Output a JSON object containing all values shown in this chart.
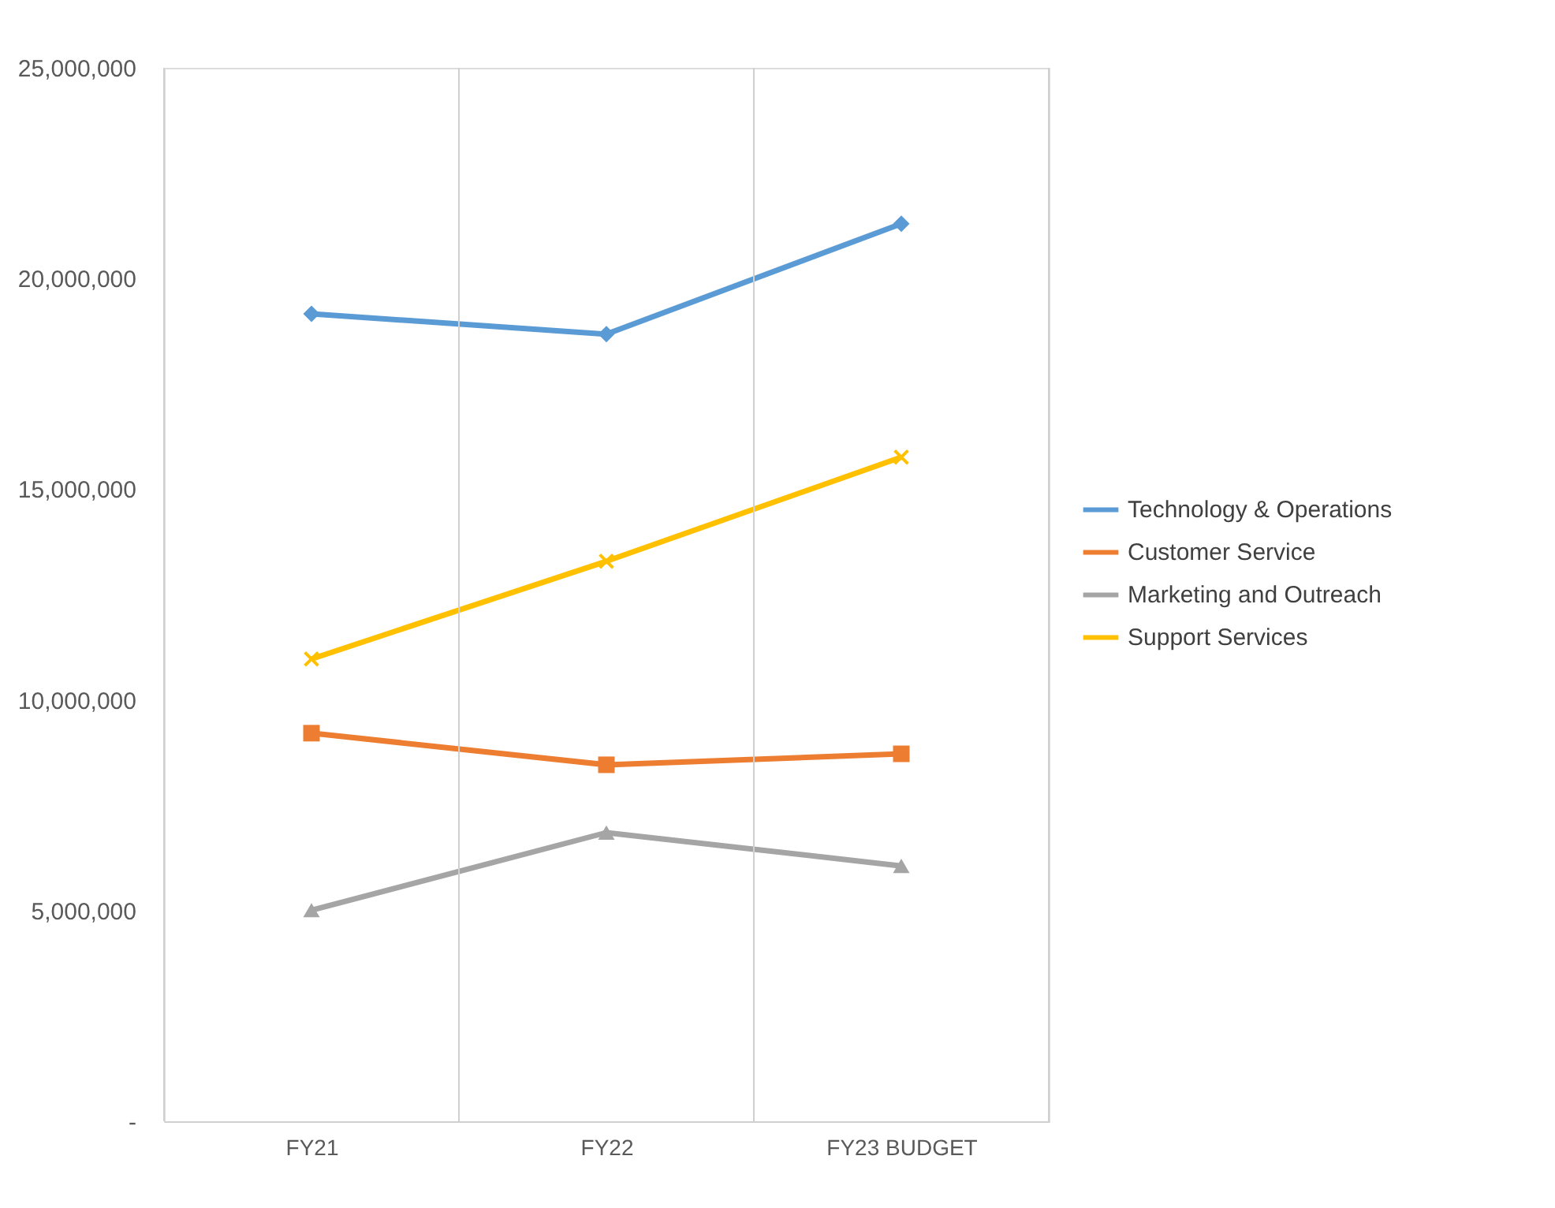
{
  "chart_data": {
    "type": "line",
    "categories": [
      "FY21",
      "FY22",
      "FY23 BUDGET"
    ],
    "series": [
      {
        "name": "Technology & Operations",
        "color": "#5b9bd5",
        "marker": "diamond",
        "values": [
          19160000,
          18680000,
          21300000
        ]
      },
      {
        "name": "Customer Service",
        "color": "#ed7d31",
        "marker": "square",
        "values": [
          9210000,
          8460000,
          8720000
        ]
      },
      {
        "name": "Marketing and Outreach",
        "color": "#a5a5a5",
        "marker": "triangle",
        "values": [
          5010000,
          6850000,
          6060000
        ]
      },
      {
        "name": "Support Services",
        "color": "#ffc000",
        "marker": "cross",
        "values": [
          10970000,
          13290000,
          15760000
        ]
      }
    ],
    "ylim": [
      0,
      25000000
    ],
    "yticks": [
      {
        "value": 0,
        "label": "-"
      },
      {
        "value": 5000000,
        "label": "5,000,000"
      },
      {
        "value": 10000000,
        "label": "10,000,000"
      },
      {
        "value": 15000000,
        "label": "15,000,000"
      },
      {
        "value": 20000000,
        "label": "20,000,000"
      },
      {
        "value": 25000000,
        "label": "25,000,000"
      }
    ],
    "grid": "x",
    "legend": "right",
    "line_style": "solid"
  }
}
